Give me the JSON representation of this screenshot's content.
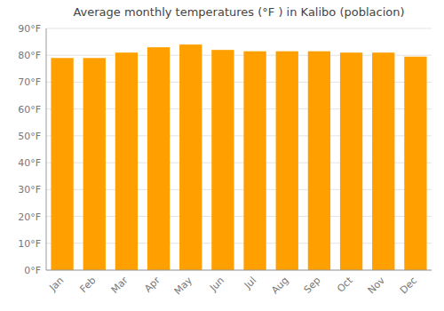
{
  "chart_data": {
    "type": "bar",
    "title": "Average monthly temperatures (°F ) in Kalibo (poblacion)",
    "categories": [
      "Jan",
      "Feb",
      "Mar",
      "Apr",
      "May",
      "Jun",
      "Jul",
      "Aug",
      "Sep",
      "Oct",
      "Nov",
      "Dec"
    ],
    "values": [
      79.0,
      79.0,
      81.0,
      83.0,
      84.0,
      82.0,
      81.5,
      81.5,
      81.5,
      81.0,
      81.0,
      79.5
    ],
    "color": "#FFA000",
    "ylim": [
      0,
      90
    ],
    "yticks": [
      {
        "value": 0,
        "label": "0°F"
      },
      {
        "value": 10,
        "label": "10°F"
      },
      {
        "value": 20,
        "label": "20°F"
      },
      {
        "value": 30,
        "label": "30°F"
      },
      {
        "value": 40,
        "label": "40°F"
      },
      {
        "value": 50,
        "label": "50°F"
      },
      {
        "value": 60,
        "label": "60°F"
      },
      {
        "value": 70,
        "label": "70°F"
      },
      {
        "value": 80,
        "label": "80°F"
      },
      {
        "value": 90,
        "label": "90°F"
      }
    ],
    "grid": true
  }
}
